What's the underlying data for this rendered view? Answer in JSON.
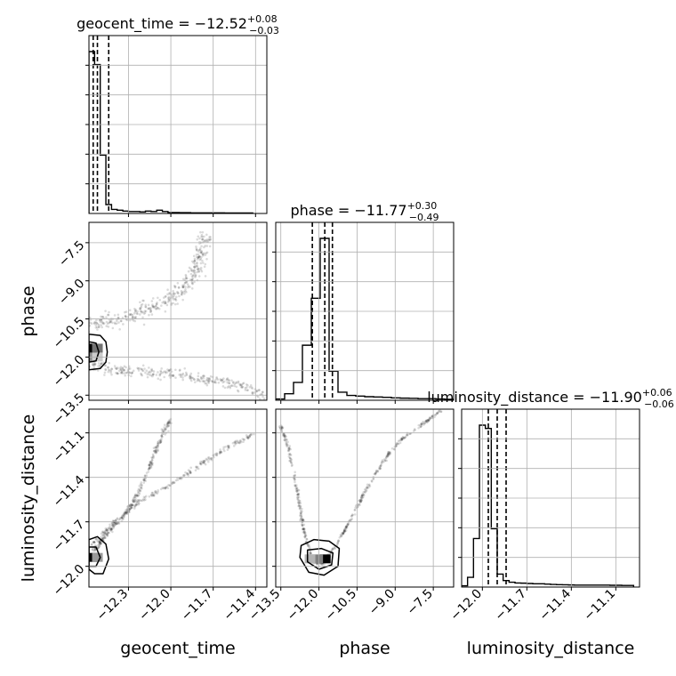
{
  "chart_data": [
    {
      "type": "histogram",
      "parameter": "geocent_time",
      "title": {
        "prefix": "geocent_time = ",
        "value": "−12.52",
        "sup": "+0.08",
        "sub": "−0.03"
      },
      "xlim": [
        -12.58,
        -11.32
      ],
      "bins": [
        -12.58,
        -12.54,
        -12.5,
        -12.46,
        -12.42,
        -12.38,
        -12.34,
        -12.3,
        -12.26,
        -12.22,
        -12.18,
        -12.14,
        -12.1,
        -12.06,
        -12.02,
        -11.98,
        -11.94,
        -11.9,
        -11.86,
        -11.82,
        -11.78,
        -11.74,
        -11.7,
        -11.66,
        -11.62,
        -11.58,
        -11.54,
        -11.5,
        -11.46,
        -11.42
      ],
      "counts": [
        1.0,
        0.92,
        0.36,
        0.055,
        0.025,
        0.02,
        0.015,
        0.012,
        0.012,
        0.01,
        0.015,
        0.012,
        0.02,
        0.012,
        0.006,
        0.006,
        0.005,
        0.005,
        0.004,
        0.004,
        0.004,
        0.004,
        0.004,
        0.004,
        0.003,
        0.003,
        0.003,
        0.003,
        0.003
      ],
      "quantiles": [
        -12.55,
        -12.52,
        -12.44
      ]
    },
    {
      "type": "histogram",
      "parameter": "phase",
      "title": {
        "prefix": "phase = ",
        "value": "−11.77",
        "sup": "+0.30",
        "sub": "−0.49"
      },
      "xlim": [
        -13.7,
        -6.7
      ],
      "bins": [
        -13.7,
        -13.35,
        -13.0,
        -12.65,
        -12.3,
        -11.95,
        -11.6,
        -11.25,
        -10.9,
        -10.55,
        -10.2,
        -9.85,
        -9.5,
        -9.15,
        -8.8,
        -8.45,
        -8.1,
        -7.75,
        -7.4,
        -7.05,
        -6.7
      ],
      "counts": [
        0.008,
        0.04,
        0.11,
        0.34,
        0.63,
        1.0,
        0.18,
        0.05,
        0.03,
        0.026,
        0.022,
        0.02,
        0.018,
        0.015,
        0.013,
        0.012,
        0.01,
        0.01,
        0.008,
        0.006
      ],
      "quantiles": [
        -12.26,
        -11.77,
        -11.47
      ]
    },
    {
      "type": "histogram",
      "parameter": "luminosity_distance",
      "title": {
        "prefix": "luminosity_distance = ",
        "value": "−11.90",
        "sup": "+0.06",
        "sub": "−0.06"
      },
      "xlim": [
        -12.14,
        -10.94
      ],
      "bins": [
        -12.14,
        -12.1,
        -12.06,
        -12.02,
        -11.98,
        -11.94,
        -11.9,
        -11.86,
        -11.82,
        -11.78,
        -11.74,
        -11.7,
        -11.66,
        -11.62,
        -11.58,
        -11.54,
        -11.5,
        -11.46,
        -11.42,
        -11.38,
        -11.34,
        -11.3,
        -11.26,
        -11.22,
        -11.18,
        -11.14,
        -11.1,
        -11.06,
        -11.02,
        -10.98
      ],
      "counts": [
        0.008,
        0.06,
        0.3,
        1.0,
        0.98,
        0.36,
        0.08,
        0.04,
        0.03,
        0.025,
        0.024,
        0.022,
        0.02,
        0.02,
        0.018,
        0.016,
        0.015,
        0.014,
        0.013,
        0.012,
        0.012,
        0.012,
        0.012,
        0.012,
        0.012,
        0.011,
        0.011,
        0.01,
        0.01
      ],
      "quantiles": [
        -11.96,
        -11.9,
        -11.84
      ]
    },
    {
      "type": "scatter",
      "x_parameter": "geocent_time",
      "y_parameter": "phase",
      "xlim": [
        -12.58,
        -11.32
      ],
      "ylim": [
        -13.7,
        -6.7
      ],
      "curves": [
        {
          "points": [
            [
              -12.58,
              -10.7
            ],
            [
              -12.45,
              -10.6
            ],
            [
              -12.3,
              -10.4
            ],
            [
              -12.15,
              -10.1
            ],
            [
              -12.0,
              -9.7
            ],
            [
              -11.9,
              -9.2
            ],
            [
              -11.82,
              -8.6
            ],
            [
              -11.78,
              -8.0
            ],
            [
              -11.75,
              -7.2
            ]
          ],
          "spread": 0.18,
          "n": 380
        },
        {
          "points": [
            [
              -12.58,
              -12.3
            ],
            [
              -12.45,
              -12.45
            ],
            [
              -12.3,
              -12.55
            ],
            [
              -12.1,
              -12.6
            ],
            [
              -11.9,
              -12.75
            ],
            [
              -11.7,
              -12.95
            ],
            [
              -11.5,
              -13.15
            ],
            [
              -11.32,
              -13.5
            ]
          ],
          "spread": 0.12,
          "n": 300
        }
      ],
      "core": {
        "x": -12.55,
        "y": -11.8,
        "density": [
          [
            -12.56,
            -11.65,
            1.0
          ],
          [
            -12.52,
            -11.65,
            0.55
          ],
          [
            -12.56,
            -12.0,
            0.45
          ],
          [
            -12.52,
            -12.0,
            0.2
          ]
        ]
      },
      "contours": [
        [
          [
            -12.58,
            -11.1
          ],
          [
            -12.5,
            -11.15
          ],
          [
            -12.46,
            -11.4
          ],
          [
            -12.45,
            -11.8
          ],
          [
            -12.46,
            -12.2
          ],
          [
            -12.5,
            -12.45
          ],
          [
            -12.58,
            -12.5
          ]
        ],
        [
          [
            -12.58,
            -11.4
          ],
          [
            -12.53,
            -11.45
          ],
          [
            -12.51,
            -11.8
          ],
          [
            -12.53,
            -12.15
          ],
          [
            -12.58,
            -12.2
          ]
        ]
      ]
    },
    {
      "type": "scatter",
      "x_parameter": "geocent_time",
      "y_parameter": "luminosity_distance",
      "xlim": [
        -12.58,
        -11.32
      ],
      "ylim": [
        -12.14,
        -10.94
      ],
      "curves": [
        {
          "points": [
            [
              -12.55,
              -11.9
            ],
            [
              -12.45,
              -11.78
            ],
            [
              -12.3,
              -11.62
            ],
            [
              -12.2,
              -11.45
            ],
            [
              -12.1,
              -11.2
            ],
            [
              -12.0,
              -11.0
            ]
          ],
          "spread": 0.05,
          "n": 300
        },
        {
          "points": [
            [
              -12.55,
              -11.85
            ],
            [
              -12.4,
              -11.7
            ],
            [
              -12.2,
              -11.55
            ],
            [
              -12.0,
              -11.45
            ],
            [
              -11.8,
              -11.32
            ],
            [
              -11.6,
              -11.2
            ],
            [
              -11.4,
              -11.1
            ]
          ],
          "spread": 0.05,
          "n": 260
        }
      ],
      "core": {
        "x": -12.55,
        "y": -11.94,
        "density": [
          [
            -12.56,
            -11.94,
            1.0
          ],
          [
            -12.52,
            -11.94,
            0.4
          ]
        ]
      },
      "contours": [
        [
          [
            -12.58,
            -11.82
          ],
          [
            -12.52,
            -11.8
          ],
          [
            -12.46,
            -11.85
          ],
          [
            -12.44,
            -11.95
          ],
          [
            -12.48,
            -12.05
          ],
          [
            -12.54,
            -12.05
          ],
          [
            -12.58,
            -12.02
          ]
        ],
        [
          [
            -12.58,
            -11.87
          ],
          [
            -12.53,
            -11.87
          ],
          [
            -12.5,
            -11.94
          ],
          [
            -12.53,
            -12.0
          ],
          [
            -12.58,
            -12.0
          ]
        ]
      ]
    },
    {
      "type": "scatter",
      "x_parameter": "phase",
      "y_parameter": "luminosity_distance",
      "xlim": [
        -13.7,
        -6.7
      ],
      "ylim": [
        -12.14,
        -10.94
      ],
      "curves": [
        {
          "points": [
            [
              -13.5,
              -11.05
            ],
            [
              -13.2,
              -11.2
            ],
            [
              -12.9,
              -11.45
            ],
            [
              -12.7,
              -11.65
            ],
            [
              -12.55,
              -11.8
            ],
            [
              -12.2,
              -11.97
            ],
            [
              -11.8,
              -11.98
            ],
            [
              -11.3,
              -11.85
            ],
            [
              -10.8,
              -11.7
            ],
            [
              -10.2,
              -11.5
            ],
            [
              -9.5,
              -11.3
            ],
            [
              -8.8,
              -11.15
            ],
            [
              -8.0,
              -11.05
            ],
            [
              -7.2,
              -10.95
            ]
          ],
          "spread": 0.035,
          "n": 520
        }
      ],
      "core": {
        "x": -11.9,
        "y": -11.95,
        "density": [
          [
            -11.75,
            -11.95,
            1.0
          ],
          [
            -12.05,
            -11.95,
            0.5
          ],
          [
            -12.35,
            -11.95,
            0.3
          ]
        ]
      },
      "contours": [
        [
          [
            -12.7,
            -11.86
          ],
          [
            -12.2,
            -11.82
          ],
          [
            -11.6,
            -11.83
          ],
          [
            -11.2,
            -11.88
          ],
          [
            -11.25,
            -12.0
          ],
          [
            -11.8,
            -12.06
          ],
          [
            -12.4,
            -12.04
          ],
          [
            -12.75,
            -11.94
          ]
        ],
        [
          [
            -12.45,
            -11.89
          ],
          [
            -11.9,
            -11.88
          ],
          [
            -11.45,
            -11.91
          ],
          [
            -11.5,
            -11.99
          ],
          [
            -12.0,
            -12.02
          ],
          [
            -12.45,
            -11.97
          ]
        ]
      ]
    }
  ],
  "axes": {
    "geocent_time": {
      "label": "geocent_time",
      "ticks": [
        -12.3,
        -12.0,
        -11.7,
        -11.4
      ],
      "tick_labels": [
        "−12.3",
        "−12.0",
        "−11.7",
        "−11.4"
      ]
    },
    "phase": {
      "label": "phase",
      "ticks": [
        -13.5,
        -12.0,
        -10.5,
        -9.0,
        -7.5
      ],
      "tick_labels": [
        "−13.5",
        "−12.0",
        "−10.5",
        "−9.0",
        "−7.5"
      ]
    },
    "luminosity_distance": {
      "label": "luminosity_distance",
      "ticks": [
        -12.0,
        -11.7,
        -11.4,
        -11.1
      ],
      "tick_labels": [
        "−12.0",
        "−11.7",
        "−11.4",
        "−11.1"
      ]
    }
  },
  "style": {
    "grid": true,
    "line_color": "#000000",
    "point_color": "#000000",
    "grid_color": "#b0b0b0"
  }
}
